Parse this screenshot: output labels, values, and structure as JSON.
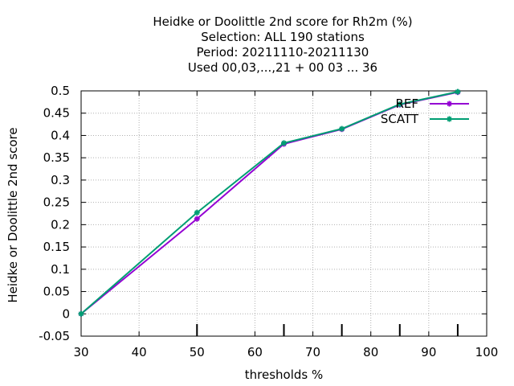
{
  "chart_data": {
    "type": "line",
    "title_lines": [
      "Heidke or Doolittle 2nd score  for Rh2m (%)",
      "Selection: ALL    190 stations",
      "Period: 20211110-20211130",
      "Used  00,03,...,21  + 00 03 ... 36"
    ],
    "xlabel": "thresholds %",
    "ylabel": "Heidke or Doolittle 2nd score",
    "xlim": [
      30,
      100
    ],
    "ylim": [
      -0.05,
      0.5
    ],
    "xticks": [
      30,
      40,
      50,
      60,
      70,
      80,
      90,
      100
    ],
    "yticks": [
      -0.05,
      0,
      0.05,
      0.1,
      0.15,
      0.2,
      0.25,
      0.3,
      0.35,
      0.4,
      0.45,
      0.5
    ],
    "xtick_labels": [
      "30",
      "40",
      "50",
      "60",
      "70",
      "80",
      "90",
      "100"
    ],
    "ytick_labels": [
      "-0.05",
      "0",
      "0.05",
      "0.1",
      "0.15",
      "0.2",
      "0.25",
      "0.3",
      "0.35",
      "0.4",
      "0.45",
      "0.5"
    ],
    "grid": true,
    "legend_position": "top-right",
    "x": [
      30,
      50,
      65,
      75,
      85,
      95
    ],
    "series": [
      {
        "name": "REF",
        "color": "#9400d3",
        "values": [
          0.0,
          0.213,
          0.381,
          0.414,
          0.469,
          0.497
        ]
      },
      {
        "name": "SCATT",
        "color": "#009e73",
        "values": [
          0.0,
          0.227,
          0.383,
          0.415,
          0.47,
          0.498
        ]
      }
    ],
    "count_bars": [
      50,
      65,
      75,
      85,
      95
    ]
  }
}
